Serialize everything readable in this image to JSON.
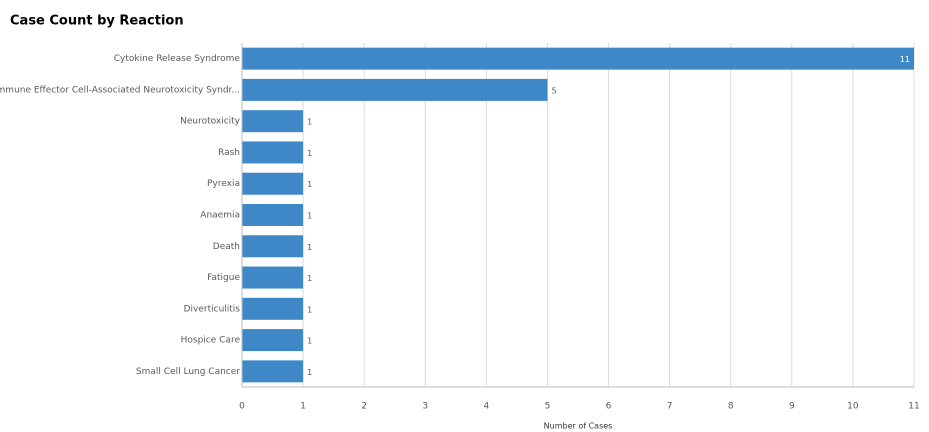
{
  "chart_data": {
    "type": "bar",
    "orientation": "horizontal",
    "title": "Case Count by Reaction",
    "x_label": "Number of Cases",
    "categories": [
      "Cytokine Release Syndrome",
      "Immune Effector Cell-Associated Neurotoxicity Syndr...",
      "Neurotoxicity",
      "Rash",
      "Pyrexia",
      "Anaemia",
      "Death",
      "Fatigue",
      "Diverticulitis",
      "Hospice Care",
      "Small Cell Lung Cancer"
    ],
    "values": [
      11,
      5,
      1,
      1,
      1,
      1,
      1,
      1,
      1,
      1,
      1
    ],
    "color": "#3f88c8",
    "xlim": [
      0,
      11
    ],
    "xticks": [
      0,
      1,
      2,
      3,
      4,
      5,
      6,
      7,
      8,
      9,
      10,
      11
    ],
    "grid": true
  }
}
